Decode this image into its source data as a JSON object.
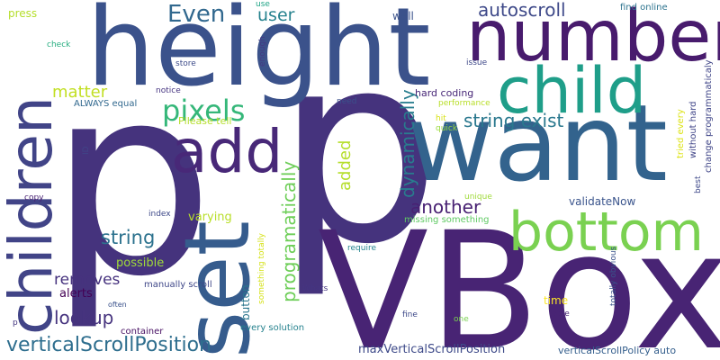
{
  "wordcloud": {
    "words": [
      {
        "text": "p",
        "color": "#45337d"
      },
      {
        "text": "p",
        "color": "#45337d"
      },
      {
        "text": "VBox",
        "color": "#482474"
      },
      {
        "text": "height",
        "color": "#3b528b"
      },
      {
        "text": "want",
        "color": "#33638d"
      },
      {
        "text": "number",
        "color": "#481b6d"
      },
      {
        "text": "child",
        "color": "#1f9e89"
      },
      {
        "text": "set",
        "color": "#365c8d"
      },
      {
        "text": "bottom",
        "color": "#7ad151"
      },
      {
        "text": "children",
        "color": "#414487"
      },
      {
        "text": "add",
        "color": "#482878"
      },
      {
        "text": "pixels",
        "color": "#35b779"
      },
      {
        "text": "Even",
        "color": "#31688e"
      },
      {
        "text": "user",
        "color": "#26828e"
      },
      {
        "text": "matter",
        "color": "#c2df23"
      },
      {
        "text": "autoscroll",
        "color": "#3e4989"
      },
      {
        "text": "string exist",
        "color": "#2a788e"
      },
      {
        "text": "dynamically",
        "color": "#287d8e"
      },
      {
        "text": "programatically",
        "color": "#6ece58"
      },
      {
        "text": "added",
        "color": "#b5de2b"
      },
      {
        "text": "another",
        "color": "#482173"
      },
      {
        "text": "string",
        "color": "#2c728e"
      },
      {
        "text": "lookup",
        "color": "#46337e"
      },
      {
        "text": "removes",
        "color": "#46327e"
      },
      {
        "text": "verticalScrollPosition",
        "color": "#2e6e8e"
      },
      {
        "text": "maxVerticalScrollPosition",
        "color": "#3e4a89"
      },
      {
        "text": "verticalScrollPolicy auto",
        "color": "#355f8d"
      },
      {
        "text": "validateNow",
        "color": "#3a548c"
      },
      {
        "text": "varying",
        "color": "#b8de29"
      },
      {
        "text": "possible",
        "color": "#a0da39"
      },
      {
        "text": "alerts",
        "color": "#440154"
      },
      {
        "text": "manually scroll",
        "color": "#3f4788"
      },
      {
        "text": "button",
        "color": "#2a768e"
      },
      {
        "text": "time",
        "color": "#fde725"
      },
      {
        "text": "press",
        "color": "#b5de2b"
      },
      {
        "text": "check",
        "color": "#28ae80"
      },
      {
        "text": "store",
        "color": "#3e4c8a"
      },
      {
        "text": "use",
        "color": "#20a486"
      },
      {
        "text": "enough",
        "color": "#443983"
      },
      {
        "text": "well",
        "color": "#3b528b"
      },
      {
        "text": "find online",
        "color": "#2c738e"
      },
      {
        "text": "issue",
        "color": "#3f4889"
      },
      {
        "text": "change programmaticaly",
        "color": "#404688"
      },
      {
        "text": "tried every",
        "color": "#dde318"
      },
      {
        "text": "without hard",
        "color": "#404588"
      },
      {
        "text": "best",
        "color": "#3e4989"
      },
      {
        "text": "need",
        "color": "#3b518b"
      },
      {
        "text": "hard coding",
        "color": "#482878"
      },
      {
        "text": "performance",
        "color": "#b8de29"
      },
      {
        "text": "quick",
        "color": "#9bd93c"
      },
      {
        "text": "hit",
        "color": "#d8e219"
      },
      {
        "text": "notice",
        "color": "#463480"
      },
      {
        "text": "Pllease tell",
        "color": "#b5de2b"
      },
      {
        "text": "ALWAYS equal",
        "color": "#31688e"
      },
      {
        "text": "ID",
        "color": "#404688"
      },
      {
        "text": "copy",
        "color": "#482173"
      },
      {
        "text": "index",
        "color": "#3e4989"
      },
      {
        "text": "unique",
        "color": "#9fda3a"
      },
      {
        "text": "missing something",
        "color": "#5ec962"
      },
      {
        "text": "require",
        "color": "#25848e"
      },
      {
        "text": "something totally",
        "color": "#d5e21a"
      },
      {
        "text": "Whats",
        "color": "#453581"
      },
      {
        "text": "often",
        "color": "#3b528b"
      },
      {
        "text": "container",
        "color": "#471063"
      },
      {
        "text": "every solution",
        "color": "#26828e"
      },
      {
        "text": "fine",
        "color": "#3e4989"
      },
      {
        "text": "one",
        "color": "#7ad151"
      },
      {
        "text": "table",
        "color": "#482475"
      },
      {
        "text": "totally obvious",
        "color": "#3a538b"
      },
      {
        "text": "p",
        "color": "#453781"
      }
    ]
  }
}
